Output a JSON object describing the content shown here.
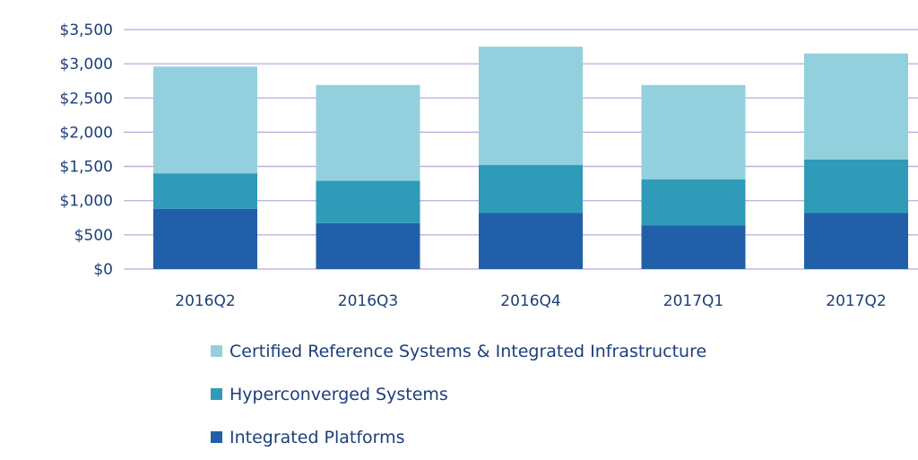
{
  "chart_data": {
    "type": "bar",
    "stacked": true,
    "title": "",
    "xlabel": "",
    "ylabel": "",
    "categories": [
      "2016Q2",
      "2016Q3",
      "2016Q4",
      "2017Q1",
      "2017Q2"
    ],
    "series": [
      {
        "name": "Integrated Platforms",
        "color": "#2160a8",
        "values": [
          880,
          670,
          820,
          640,
          820
        ]
      },
      {
        "name": "Hyperconverged Systems",
        "color": "#2f9bb8",
        "values": [
          520,
          620,
          700,
          670,
          780
        ]
      },
      {
        "name": "Certified Reference Systems & Integrated Infrastructure",
        "color": "#93d0de",
        "values": [
          1560,
          1400,
          1730,
          1380,
          1550
        ]
      }
    ],
    "ylim": [
      0,
      3500
    ],
    "yticks": [
      0,
      500,
      1000,
      1500,
      2000,
      2500,
      3000,
      3500
    ],
    "ytick_labels": [
      "$0",
      "$500",
      "$1,000",
      "$1,500",
      "$2,000",
      "$2,500",
      "$3,000",
      "$3,500"
    ],
    "grid": true,
    "legend_position": "bottom",
    "legend_order": [
      "Certified Reference Systems & Integrated Infrastructure",
      "Hyperconverged Systems",
      "Integrated Platforms"
    ]
  }
}
